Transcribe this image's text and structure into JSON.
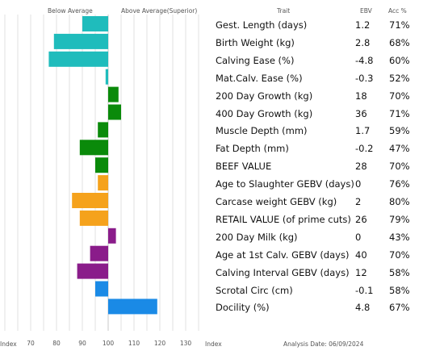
{
  "header": {
    "below_average": "Below Average",
    "above_average": "Above Average(Superior)",
    "trait": "Trait",
    "ebv": "EBV",
    "acc": "Acc %"
  },
  "footer": {
    "index_left": "Index",
    "index_right": "Index",
    "analysis_date": "Analysis Date: 06/09/2024"
  },
  "chart_data": {
    "type": "bar",
    "orientation": "horizontal",
    "baseline": 100,
    "xlim": [
      60,
      135
    ],
    "x_ticks": [
      70,
      80,
      90,
      100,
      110,
      120,
      130
    ],
    "grid": true,
    "rows": [
      {
        "trait": "Gest. Length (days)",
        "ebv": "1.2",
        "acc": "71%",
        "index": 90,
        "color": "#1fbcbc"
      },
      {
        "trait": "Birth Weight (kg)",
        "ebv": "2.8",
        "acc": "68%",
        "index": 79,
        "color": "#1fbcbc"
      },
      {
        "trait": "Calving Ease (%)",
        "ebv": "-4.8",
        "acc": "60%",
        "index": 77,
        "color": "#1fbcbc"
      },
      {
        "trait": "Mat.Calv. Ease (%)",
        "ebv": "-0.3",
        "acc": "52%",
        "index": 99,
        "color": "#1fbcbc"
      },
      {
        "trait": "200 Day Growth (kg)",
        "ebv": "18",
        "acc": "70%",
        "index": 104,
        "color": "#0a8a0a"
      },
      {
        "trait": "400 Day Growth (kg)",
        "ebv": "36",
        "acc": "71%",
        "index": 105,
        "color": "#0a8a0a"
      },
      {
        "trait": "Muscle Depth (mm)",
        "ebv": "1.7",
        "acc": "59%",
        "index": 96,
        "color": "#0a8a0a"
      },
      {
        "trait": "Fat Depth (mm)",
        "ebv": "-0.2",
        "acc": "47%",
        "index": 89,
        "color": "#0a8a0a"
      },
      {
        "trait": "BEEF VALUE",
        "ebv": "28",
        "acc": "70%",
        "index": 95,
        "color": "#0a8a0a"
      },
      {
        "trait": "Age to Slaughter GEBV (days)",
        "ebv": "0",
        "acc": "76%",
        "index": 96,
        "color": "#f5a21c"
      },
      {
        "trait": "Carcase weight GEBV (kg)",
        "ebv": "2",
        "acc": "80%",
        "index": 86,
        "color": "#f5a21c"
      },
      {
        "trait": "RETAIL VALUE (of prime cuts)",
        "ebv": "26",
        "acc": "79%",
        "index": 89,
        "color": "#f5a21c"
      },
      {
        "trait": "200 Day Milk (kg)",
        "ebv": "0",
        "acc": "43%",
        "index": 103,
        "color": "#8a1c8a"
      },
      {
        "trait": "Age at 1st Calv. GEBV (days)",
        "ebv": "40",
        "acc": "70%",
        "index": 93,
        "color": "#8a1c8a"
      },
      {
        "trait": "Calving Interval GEBV (days)",
        "ebv": "12",
        "acc": "58%",
        "index": 88,
        "color": "#8a1c8a"
      },
      {
        "trait": "Scrotal Circ (cm)",
        "ebv": "-0.1",
        "acc": "58%",
        "index": 95,
        "color": "#1a8ae6"
      },
      {
        "trait": "Docility (%)",
        "ebv": "4.8",
        "acc": "67%",
        "index": 119,
        "color": "#1a8ae6"
      }
    ]
  }
}
